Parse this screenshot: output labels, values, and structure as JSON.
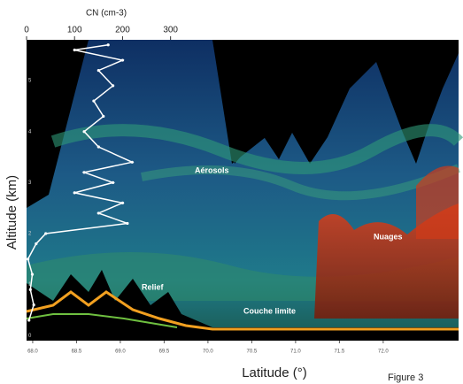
{
  "chart_data": {
    "type": "lidar-curtain",
    "x2label": "CN (cm-3)",
    "x2lim": [
      0,
      900
    ],
    "x2ticks": [
      0,
      100,
      200,
      300
    ],
    "xlabel": "Latitude (°)",
    "xlim": [
      67.93,
      72.86
    ],
    "xticks": [
      {
        "value": 68,
        "label": "68.0"
      },
      {
        "value": 68.5,
        "label": "68.5"
      },
      {
        "value": 69,
        "label": "69.0"
      },
      {
        "value": 69.5,
        "label": "69.5"
      },
      {
        "value": 70,
        "label": "70.0"
      },
      {
        "value": 70.5,
        "label": "70.5"
      },
      {
        "value": 71,
        "label": "71.0"
      },
      {
        "value": 71.5,
        "label": "71.5"
      },
      {
        "value": 72,
        "label": "72.0"
      }
    ],
    "ylabel": "Altitude (km)",
    "ylim": [
      -0.1,
      5.8
    ],
    "yticks": [
      0,
      1,
      2,
      3,
      4,
      5
    ],
    "profile": {
      "color": "#ffffff",
      "altitude": [
        0.3,
        0.6,
        0.9,
        1.2,
        1.5,
        1.8,
        2.0,
        2.2,
        2.4,
        2.6,
        2.8,
        3.0,
        3.2,
        3.4,
        3.7,
        4.0,
        4.3,
        4.6,
        4.9,
        5.2,
        5.4,
        5.6,
        5.7
      ],
      "cn": [
        5,
        15,
        8,
        12,
        3,
        20,
        40,
        210,
        150,
        200,
        100,
        180,
        120,
        220,
        150,
        120,
        160,
        140,
        180,
        150,
        200,
        100,
        170
      ]
    },
    "annotations": [
      "Aérosols",
      "Relief",
      "Couche limite",
      "Nuages"
    ],
    "caption": "Figure 3"
  }
}
